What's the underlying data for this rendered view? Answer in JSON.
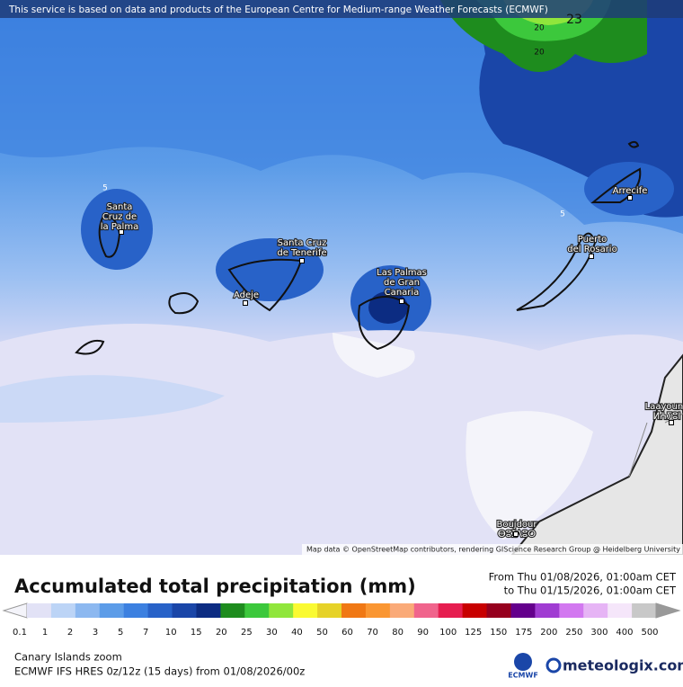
{
  "map": {
    "notice": "This service is based on data and products of the European Centre for Medium-range Weather Forecasts (ECMWF)",
    "attribution": "Map data © OpenStreetMap contributors, rendering GIScience Research Group @ Heidelberg University",
    "contour_labels": [
      "5",
      "5",
      "20",
      "20",
      "23"
    ],
    "places": [
      {
        "lines": [
          "Santa",
          "Cruz de",
          "la Palma"
        ]
      },
      {
        "lines": [
          "Santa Cruz",
          "de Tenerife"
        ]
      },
      {
        "lines": [
          "Adeje"
        ]
      },
      {
        "lines": [
          "Las Palmas",
          "de Gran",
          "Canaria"
        ]
      },
      {
        "lines": [
          "Puerto",
          "del Rosario"
        ]
      },
      {
        "lines": [
          "Arrecife"
        ]
      },
      {
        "lines": [
          "Laayoune",
          "ⵍⵄⵢⵓⵏ"
        ]
      },
      {
        "lines": [
          "Boujdour",
          "ⴱⵓⵊⴷⵓⵔ"
        ]
      }
    ]
  },
  "legend": {
    "title": "Accumulated total precipitation (mm)",
    "from": "From Thu 01/08/2026, 01:00am CET",
    "to": "to Thu 01/15/2026, 01:00am CET",
    "levels": [
      "0.1",
      "1",
      "2",
      "3",
      "5",
      "7",
      "10",
      "15",
      "20",
      "25",
      "30",
      "40",
      "50",
      "60",
      "70",
      "80",
      "90",
      "100",
      "125",
      "150",
      "175",
      "200",
      "250",
      "300",
      "400",
      "500"
    ],
    "colors": [
      "#e2e2f6",
      "#bcd4f6",
      "#8cb8f0",
      "#5c9ce8",
      "#3c80e0",
      "#2862c8",
      "#1a46a8",
      "#0c2c82",
      "#1e8c1e",
      "#3cc83c",
      "#90e63c",
      "#fafa32",
      "#e6d228",
      "#f07814",
      "#fa9632",
      "#faaa78",
      "#f0648c",
      "#e61e50",
      "#c80000",
      "#96001e",
      "#64008c",
      "#a03cd2",
      "#d278f0",
      "#e6b4f5",
      "#f5e6fa",
      "#c8c8c8"
    ]
  },
  "footer": {
    "region": "Canary Islands zoom",
    "model": "ECMWF IFS HRES 0z/12z (15 days) from 01/08/2026/00z",
    "ecmwf": "ECMWF",
    "brand": "meteologix.com"
  }
}
